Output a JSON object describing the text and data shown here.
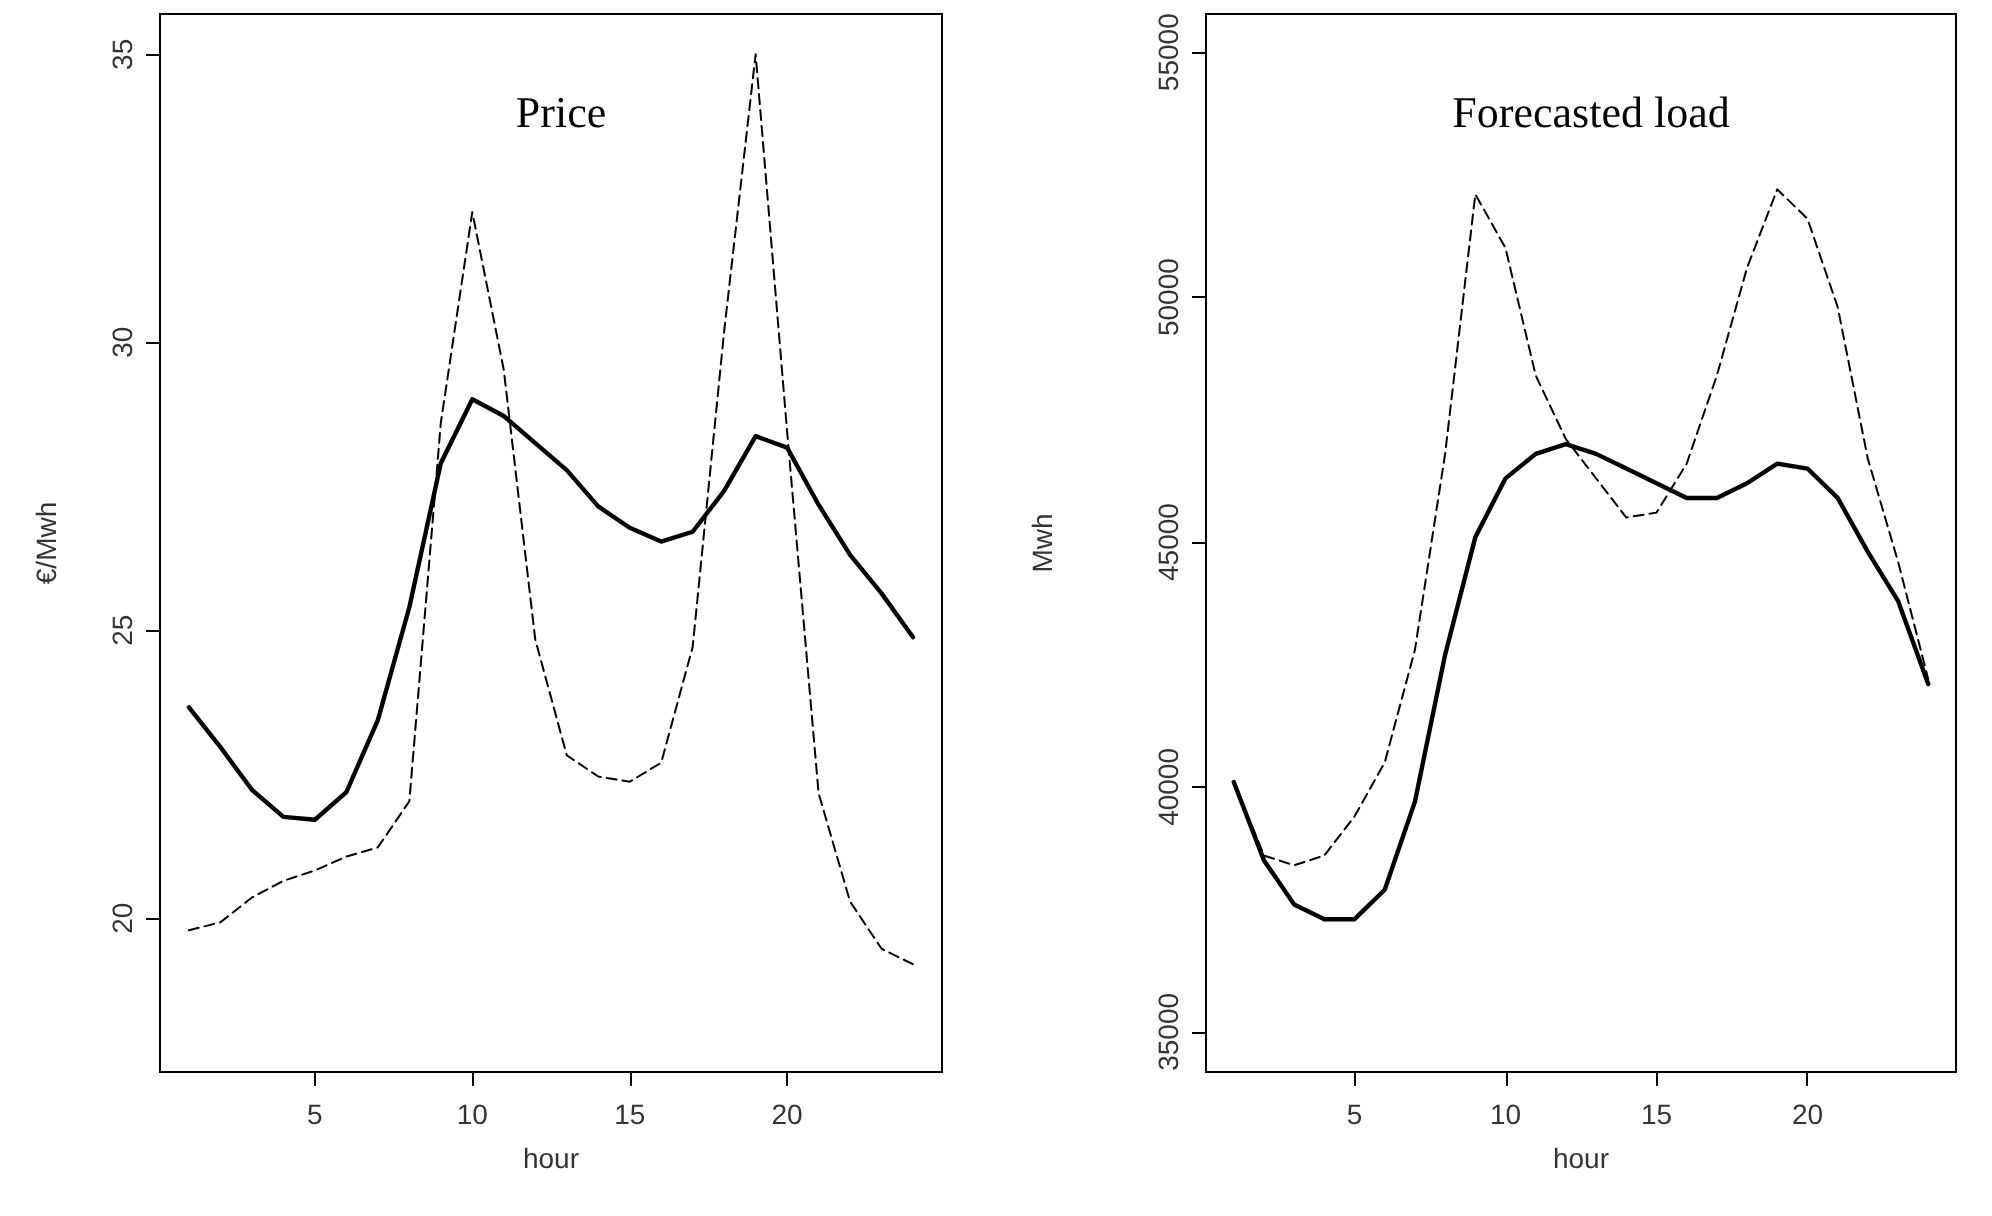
{
  "chart_data": [
    {
      "type": "line",
      "title": "Price",
      "xlabel": "hour",
      "ylabel": "€/Mwh",
      "x": [
        1,
        2,
        3,
        4,
        5,
        6,
        7,
        8,
        9,
        10,
        11,
        12,
        13,
        14,
        15,
        16,
        17,
        18,
        19,
        20,
        21,
        22,
        23,
        24
      ],
      "series": [
        {
          "color": "#000000",
          "line_style": "solid",
          "values": [
            23.66,
            22.97,
            22.23,
            21.76,
            21.71,
            22.19,
            23.44,
            25.4,
            27.9,
            29.01,
            28.72,
            28.25,
            27.78,
            27.15,
            26.78,
            26.54,
            26.71,
            27.42,
            28.37,
            28.17,
            27.18,
            26.31,
            25.64,
            24.88
          ]
        },
        {
          "color": "#000000",
          "line_style": "dashed",
          "values": [
            19.79,
            19.93,
            20.36,
            20.65,
            20.83,
            21.07,
            21.23,
            22.03,
            28.6,
            32.26,
            29.52,
            24.84,
            22.83,
            22.46,
            22.37,
            22.7,
            24.71,
            30.19,
            35.0,
            28.45,
            22.17,
            20.29,
            19.47,
            19.2
          ]
        }
      ],
      "xlim": [
        0.08,
        24.92
      ],
      "xticks": [
        5,
        10,
        15,
        20
      ],
      "ylim": [
        17.33,
        35.7
      ],
      "yticks": [
        20,
        25,
        30,
        35
      ]
    },
    {
      "type": "line",
      "title": "Forecasted load",
      "xlabel": "hour",
      "ylabel": "Mwh",
      "x": [
        1,
        2,
        3,
        4,
        5,
        6,
        7,
        8,
        9,
        10,
        11,
        12,
        13,
        14,
        15,
        16,
        17,
        18,
        19,
        20,
        21,
        22,
        23,
        24
      ],
      "series": [
        {
          "color": "#000000",
          "line_style": "solid",
          "values": [
            40100,
            38500,
            37600,
            37300,
            37300,
            37900,
            39700,
            42700,
            45100,
            46300,
            46800,
            47000,
            46800,
            46500,
            46200,
            45900,
            45900,
            46200,
            46600,
            46500,
            45900,
            44800,
            43800,
            42100
          ]
        },
        {
          "color": "#000000",
          "line_style": "dashed",
          "values": [
            40100,
            38600,
            38400,
            38600,
            39400,
            40500,
            42800,
            46800,
            52100,
            51000,
            48400,
            47100,
            46300,
            45500,
            45600,
            46600,
            48400,
            50600,
            52200,
            51600,
            49800,
            46700,
            44600,
            42200
          ]
        }
      ],
      "xlim": [
        0.08,
        24.92
      ],
      "xticks": [
        5,
        10,
        15,
        20
      ],
      "ylim": [
        34180,
        55780
      ],
      "yticks": [
        35000,
        40000,
        45000,
        50000,
        55000
      ]
    }
  ]
}
